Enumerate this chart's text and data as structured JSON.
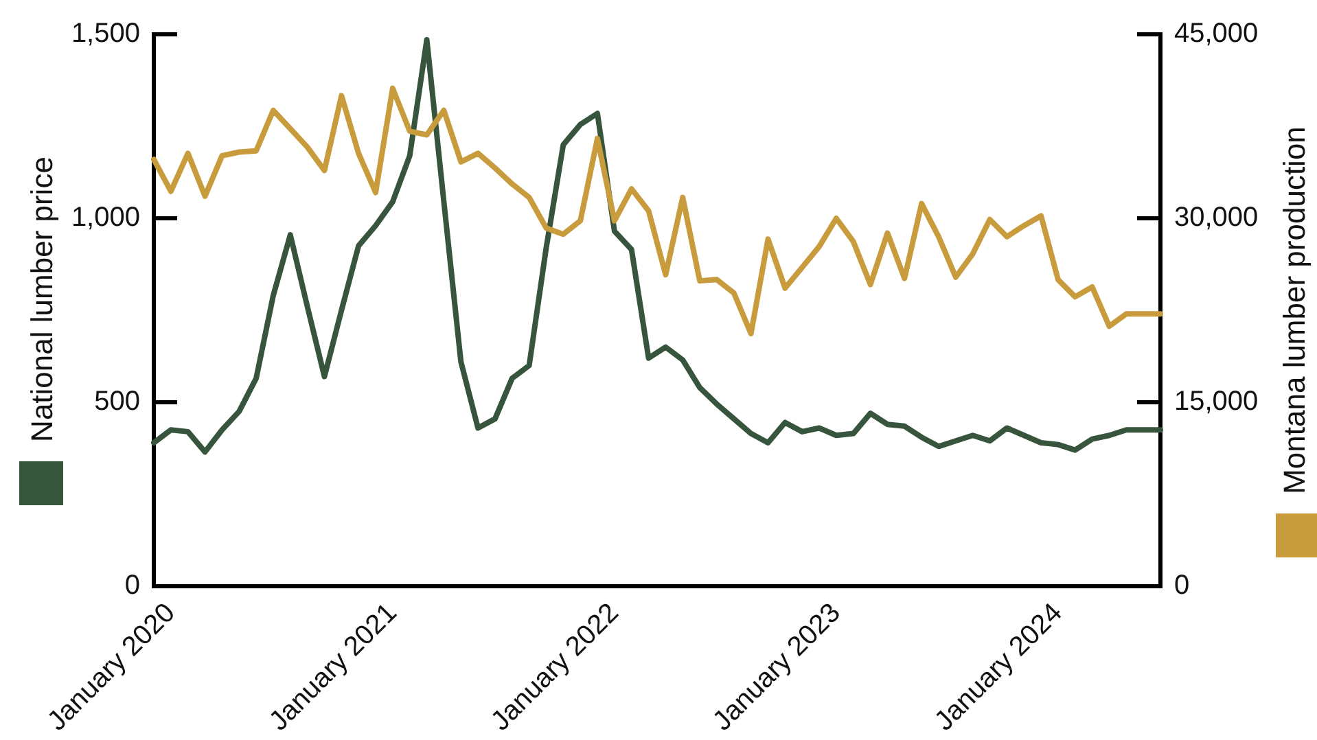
{
  "chart_data": {
    "type": "line",
    "categories": [
      null,
      "January 2020",
      null,
      null,
      null,
      null,
      null,
      null,
      null,
      null,
      null,
      null,
      null,
      null,
      "January 2021",
      null,
      null,
      null,
      null,
      null,
      null,
      null,
      null,
      null,
      null,
      null,
      null,
      "January 2022",
      null,
      null,
      null,
      null,
      null,
      null,
      null,
      null,
      null,
      null,
      null,
      null,
      "January 2023",
      null,
      null,
      null,
      null,
      null,
      null,
      null,
      null,
      null,
      null,
      null,
      null,
      "January 2024",
      null,
      null,
      null,
      null,
      null,
      null
    ],
    "series": [
      {
        "color": "#c89b3c",
        "axis": "y2",
        "values": [
          34800,
          32200,
          35300,
          31800,
          35100,
          35400,
          35500,
          38800,
          37300,
          35800,
          33900,
          40000,
          35300,
          32100,
          40600,
          37100,
          36800,
          38800,
          34600,
          35300,
          34100,
          32800,
          31700,
          29200,
          28700,
          29800,
          36500,
          29800,
          32400,
          30600,
          25400,
          31700,
          24900,
          25000,
          23900,
          20600,
          28300,
          24300,
          26000,
          27700,
          30000,
          28100,
          24600,
          28800,
          25100,
          31200,
          28500,
          25200,
          27100,
          29900,
          28500,
          29400,
          30200,
          25000,
          23600,
          24400,
          21200,
          22200,
          22200,
          22200
        ]
      },
      {
        "color": "#37553c",
        "axis": "y",
        "values": [
          390,
          425,
          420,
          365,
          425,
          475,
          565,
          790,
          955,
          760,
          570,
          750,
          925,
          980,
          1045,
          1170,
          1485,
          1045,
          610,
          430,
          455,
          565,
          600,
          920,
          1200,
          1255,
          1285,
          965,
          915,
          620,
          650,
          615,
          540,
          495,
          455,
          415,
          390,
          445,
          420,
          430,
          410,
          415,
          470,
          440,
          435,
          405,
          380,
          395,
          410,
          395,
          430,
          410,
          390,
          385,
          370,
          400,
          410,
          425,
          425,
          425
        ]
      }
    ],
    "ylabel": "National lumber price",
    "y2label": "Montana lumber production",
    "ylim": [
      0,
      1500
    ],
    "yticks": [
      0,
      500,
      {
        "value": 1000,
        "label": "1,000"
      },
      {
        "value": 1500,
        "label": "1,500"
      }
    ],
    "y2lim": [
      0,
      45000
    ],
    "y2ticks": [
      0,
      {
        "value": 15000,
        "label": "15,000"
      },
      {
        "value": 30000,
        "label": "30,000"
      },
      {
        "value": 45000,
        "label": "45,000"
      }
    ],
    "marker": "none"
  }
}
